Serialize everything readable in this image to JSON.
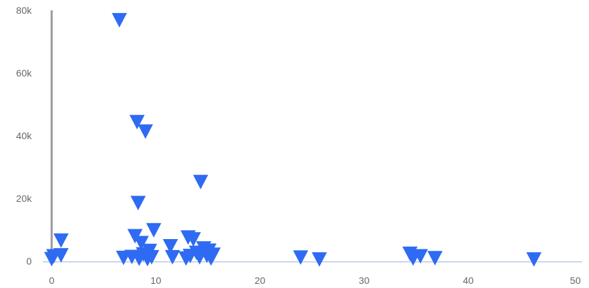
{
  "chart_data": {
    "type": "scatter",
    "marker": "triangle-down",
    "colors": {
      "marker": "#2E6BF2",
      "axis_line": "#CCD6EB",
      "y_axis_line": "#999999",
      "tick_label": "#666666"
    },
    "grid": false,
    "xlim": [
      0,
      50
    ],
    "ylim": [
      0,
      80000
    ],
    "x_ticks": [
      {
        "value": 0,
        "label": "0"
      },
      {
        "value": 10,
        "label": "10"
      },
      {
        "value": 20,
        "label": "20"
      },
      {
        "value": 30,
        "label": "30"
      },
      {
        "value": 40,
        "label": "40"
      },
      {
        "value": 50,
        "label": "50"
      }
    ],
    "y_ticks": [
      {
        "value": 0,
        "label": "0"
      },
      {
        "value": 20000,
        "label": "20k"
      },
      {
        "value": 40000,
        "label": "40k"
      },
      {
        "value": 60000,
        "label": "60k"
      },
      {
        "value": 80000,
        "label": "80k"
      }
    ],
    "points": [
      {
        "x": 0.0,
        "y": 300
      },
      {
        "x": 0.2,
        "y": 1200
      },
      {
        "x": 0.9,
        "y": 1500
      },
      {
        "x": 0.9,
        "y": 6200
      },
      {
        "x": 6.5,
        "y": 76500
      },
      {
        "x": 6.9,
        "y": 700
      },
      {
        "x": 7.7,
        "y": 1000
      },
      {
        "x": 8.0,
        "y": 7600
      },
      {
        "x": 8.2,
        "y": 44000
      },
      {
        "x": 8.3,
        "y": 18200
      },
      {
        "x": 8.4,
        "y": 400
      },
      {
        "x": 8.6,
        "y": 5400
      },
      {
        "x": 8.8,
        "y": 1800
      },
      {
        "x": 9.0,
        "y": 41000
      },
      {
        "x": 9.2,
        "y": 300
      },
      {
        "x": 9.4,
        "y": 2900
      },
      {
        "x": 9.6,
        "y": 900
      },
      {
        "x": 9.8,
        "y": 9500
      },
      {
        "x": 11.4,
        "y": 4400
      },
      {
        "x": 11.6,
        "y": 900
      },
      {
        "x": 12.9,
        "y": 500
      },
      {
        "x": 13.1,
        "y": 7200
      },
      {
        "x": 13.3,
        "y": 1300
      },
      {
        "x": 13.6,
        "y": 6600
      },
      {
        "x": 13.9,
        "y": 2300
      },
      {
        "x": 14.2,
        "y": 900
      },
      {
        "x": 14.3,
        "y": 24900
      },
      {
        "x": 14.6,
        "y": 3700
      },
      {
        "x": 14.9,
        "y": 1400
      },
      {
        "x": 15.1,
        "y": 3000
      },
      {
        "x": 15.3,
        "y": 500
      },
      {
        "x": 15.5,
        "y": 1700
      },
      {
        "x": 23.9,
        "y": 800
      },
      {
        "x": 25.7,
        "y": 200
      },
      {
        "x": 34.4,
        "y": 2000
      },
      {
        "x": 34.7,
        "y": 500
      },
      {
        "x": 35.4,
        "y": 1200
      },
      {
        "x": 36.8,
        "y": 600
      },
      {
        "x": 46.3,
        "y": 200
      }
    ]
  }
}
